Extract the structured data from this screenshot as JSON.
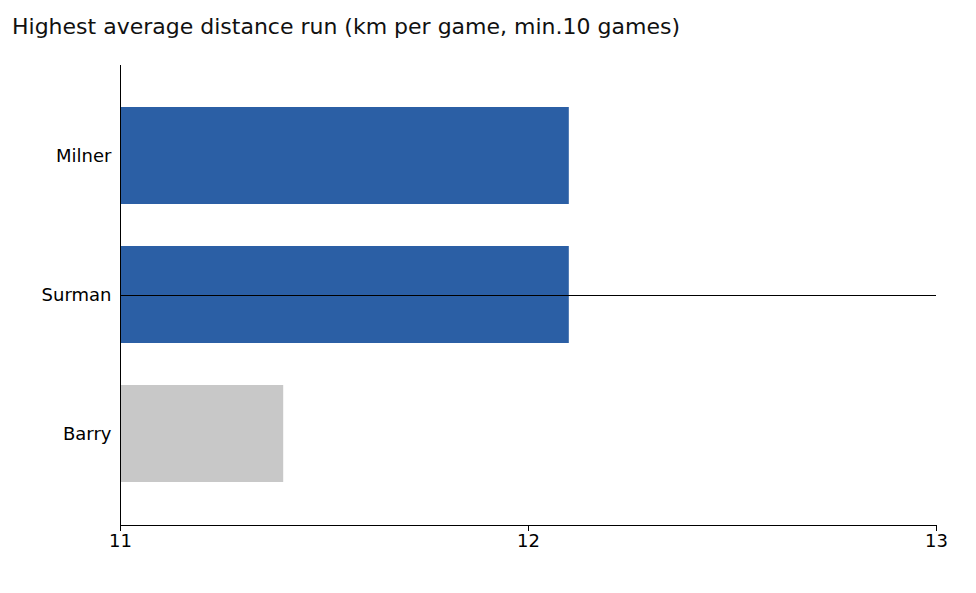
{
  "chart_data": {
    "type": "bar",
    "orientation": "horizontal",
    "title": "Highest average distance run (km per game, min.10 games)",
    "categories": [
      "Milner",
      "Surman",
      "Barry"
    ],
    "values": [
      12.1,
      12.1,
      11.4
    ],
    "colors": [
      "#2B5FA5",
      "#2B5FA5",
      "#C8C8C8"
    ],
    "xlim": [
      11,
      13
    ],
    "xticks": [
      11,
      12,
      13
    ],
    "grid": false
  }
}
